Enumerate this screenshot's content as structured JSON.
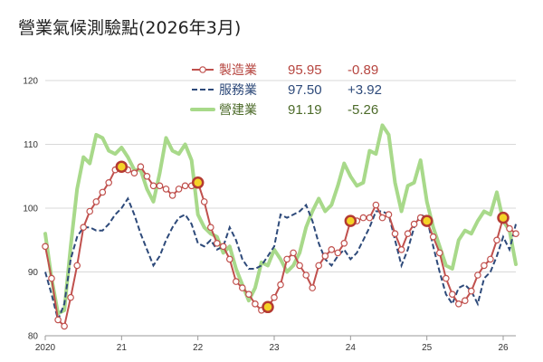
{
  "chart_data": {
    "type": "line",
    "title": "營業氣候測驗點(2026年3月)",
    "ylim": [
      80,
      120
    ],
    "yticks": [
      80,
      90,
      100,
      110,
      120
    ],
    "xlim": [
      2020.0,
      2026.166
    ],
    "xticks": [
      {
        "value": 2020,
        "label": "2020"
      },
      {
        "value": 2021,
        "label": "21"
      },
      {
        "value": 2022,
        "label": "22"
      },
      {
        "value": 2023,
        "label": "23"
      },
      {
        "value": 2024,
        "label": "24"
      },
      {
        "value": 2025,
        "label": "25"
      },
      {
        "value": 2026,
        "label": "26"
      }
    ],
    "grid": "horizontal",
    "legend_position": "top-center",
    "series": [
      {
        "name": "營建業",
        "color": "#a8d98a",
        "style": "thick",
        "latest": "91.19",
        "change": "-5.26",
        "points": [
          [
            2020.0,
            96.0
          ],
          [
            2020.083,
            89.0
          ],
          [
            2020.167,
            83.5
          ],
          [
            2020.25,
            84.0
          ],
          [
            2020.333,
            94.0
          ],
          [
            2020.417,
            103.0
          ],
          [
            2020.5,
            108.0
          ],
          [
            2020.583,
            107.0
          ],
          [
            2020.667,
            111.5
          ],
          [
            2020.75,
            111.0
          ],
          [
            2020.833,
            109.0
          ],
          [
            2020.917,
            108.5
          ],
          [
            2021.0,
            109.5
          ],
          [
            2021.083,
            108.0
          ],
          [
            2021.167,
            106.0
          ],
          [
            2021.25,
            106.0
          ],
          [
            2021.333,
            103.0
          ],
          [
            2021.417,
            101.0
          ],
          [
            2021.5,
            105.5
          ],
          [
            2021.583,
            111.0
          ],
          [
            2021.667,
            109.0
          ],
          [
            2021.75,
            108.5
          ],
          [
            2021.833,
            110.0
          ],
          [
            2021.917,
            107.5
          ],
          [
            2022.0,
            99.0
          ],
          [
            2022.083,
            97.0
          ],
          [
            2022.167,
            96.0
          ],
          [
            2022.25,
            95.5
          ],
          [
            2022.333,
            93.0
          ],
          [
            2022.417,
            94.0
          ],
          [
            2022.5,
            90.5
          ],
          [
            2022.583,
            88.0
          ],
          [
            2022.667,
            85.5
          ],
          [
            2022.75,
            87.5
          ],
          [
            2022.833,
            91.5
          ],
          [
            2022.917,
            91.0
          ],
          [
            2023.0,
            93.5
          ],
          [
            2023.083,
            92.0
          ],
          [
            2023.167,
            90.0
          ],
          [
            2023.25,
            91.0
          ],
          [
            2023.333,
            93.0
          ],
          [
            2023.417,
            97.0
          ],
          [
            2023.5,
            99.5
          ],
          [
            2023.583,
            101.5
          ],
          [
            2023.667,
            99.5
          ],
          [
            2023.75,
            100.5
          ],
          [
            2023.833,
            103.5
          ],
          [
            2023.917,
            107.0
          ],
          [
            2024.0,
            105.0
          ],
          [
            2024.083,
            103.5
          ],
          [
            2024.167,
            104.0
          ],
          [
            2024.25,
            109.0
          ],
          [
            2024.333,
            108.5
          ],
          [
            2024.417,
            113.0
          ],
          [
            2024.5,
            111.5
          ],
          [
            2024.583,
            104.0
          ],
          [
            2024.667,
            99.5
          ],
          [
            2024.75,
            103.5
          ],
          [
            2024.833,
            104.0
          ],
          [
            2024.917,
            107.5
          ],
          [
            2025.0,
            101.0
          ],
          [
            2025.083,
            97.0
          ],
          [
            2025.167,
            94.0
          ],
          [
            2025.25,
            91.0
          ],
          [
            2025.333,
            90.5
          ],
          [
            2025.417,
            95.0
          ],
          [
            2025.5,
            96.5
          ],
          [
            2025.583,
            96.0
          ],
          [
            2025.667,
            98.0
          ],
          [
            2025.75,
            99.5
          ],
          [
            2025.833,
            99.0
          ],
          [
            2025.917,
            102.5
          ],
          [
            2026.0,
            98.0
          ],
          [
            2026.083,
            96.5
          ],
          [
            2026.166,
            91.2
          ]
        ]
      },
      {
        "name": "服務業",
        "color": "#2e4a7a",
        "style": "dashed",
        "latest": "97.50",
        "change": "+3.92",
        "points": [
          [
            2020.0,
            90.0
          ],
          [
            2020.083,
            86.5
          ],
          [
            2020.167,
            82.5
          ],
          [
            2020.25,
            85.0
          ],
          [
            2020.333,
            92.0
          ],
          [
            2020.417,
            95.5
          ],
          [
            2020.5,
            97.0
          ],
          [
            2020.583,
            97.0
          ],
          [
            2020.667,
            96.5
          ],
          [
            2020.75,
            96.5
          ],
          [
            2020.833,
            97.5
          ],
          [
            2020.917,
            99.0
          ],
          [
            2021.0,
            100.0
          ],
          [
            2021.083,
            101.5
          ],
          [
            2021.167,
            99.0
          ],
          [
            2021.25,
            96.0
          ],
          [
            2021.333,
            93.5
          ],
          [
            2021.417,
            91.0
          ],
          [
            2021.5,
            92.5
          ],
          [
            2021.583,
            95.0
          ],
          [
            2021.667,
            97.0
          ],
          [
            2021.75,
            98.5
          ],
          [
            2021.833,
            99.0
          ],
          [
            2021.917,
            97.5
          ],
          [
            2022.0,
            94.5
          ],
          [
            2022.083,
            94.0
          ],
          [
            2022.167,
            95.0
          ],
          [
            2022.25,
            93.5
          ],
          [
            2022.333,
            94.0
          ],
          [
            2022.417,
            97.0
          ],
          [
            2022.5,
            95.0
          ],
          [
            2022.583,
            92.0
          ],
          [
            2022.667,
            90.5
          ],
          [
            2022.75,
            90.5
          ],
          [
            2022.833,
            91.0
          ],
          [
            2022.917,
            92.5
          ],
          [
            2023.0,
            94.0
          ],
          [
            2023.083,
            99.0
          ],
          [
            2023.167,
            98.5
          ],
          [
            2023.25,
            99.0
          ],
          [
            2023.333,
            99.5
          ],
          [
            2023.417,
            100.5
          ],
          [
            2023.5,
            98.0
          ],
          [
            2023.583,
            94.5
          ],
          [
            2023.667,
            92.0
          ],
          [
            2023.75,
            91.0
          ],
          [
            2023.833,
            92.5
          ],
          [
            2023.917,
            93.5
          ],
          [
            2024.0,
            92.0
          ],
          [
            2024.083,
            93.0
          ],
          [
            2024.167,
            95.0
          ],
          [
            2024.25,
            97.0
          ],
          [
            2024.333,
            99.5
          ],
          [
            2024.417,
            99.5
          ],
          [
            2024.5,
            99.0
          ],
          [
            2024.583,
            95.0
          ],
          [
            2024.667,
            91.0
          ],
          [
            2024.75,
            93.5
          ],
          [
            2024.833,
            97.0
          ],
          [
            2024.917,
            99.0
          ],
          [
            2025.0,
            98.5
          ],
          [
            2025.083,
            94.0
          ],
          [
            2025.167,
            90.0
          ],
          [
            2025.25,
            86.5
          ],
          [
            2025.333,
            85.0
          ],
          [
            2025.417,
            87.5
          ],
          [
            2025.5,
            88.0
          ],
          [
            2025.583,
            87.0
          ],
          [
            2025.667,
            85.0
          ],
          [
            2025.75,
            89.0
          ],
          [
            2025.833,
            90.0
          ],
          [
            2025.917,
            92.5
          ],
          [
            2026.0,
            95.5
          ],
          [
            2026.083,
            93.5
          ],
          [
            2026.166,
            97.5
          ]
        ]
      },
      {
        "name": "製造業",
        "color": "#c0504d",
        "style": "markers",
        "latest": "95.95",
        "change": "-0.89",
        "points": [
          [
            2020.0,
            94.0
          ],
          [
            2020.083,
            89.0
          ],
          [
            2020.167,
            82.5
          ],
          [
            2020.25,
            81.5
          ],
          [
            2020.333,
            86.0
          ],
          [
            2020.417,
            91.0
          ],
          [
            2020.5,
            97.0
          ],
          [
            2020.583,
            99.5
          ],
          [
            2020.667,
            101.0
          ],
          [
            2020.75,
            102.5
          ],
          [
            2020.833,
            104.0
          ],
          [
            2020.917,
            106.0
          ],
          [
            2021.0,
            106.5
          ],
          [
            2021.083,
            106.0
          ],
          [
            2021.167,
            105.5
          ],
          [
            2021.25,
            106.5
          ],
          [
            2021.333,
            105.0
          ],
          [
            2021.417,
            103.5
          ],
          [
            2021.5,
            103.5
          ],
          [
            2021.583,
            103.0
          ],
          [
            2021.667,
            102.0
          ],
          [
            2021.75,
            103.0
          ],
          [
            2021.833,
            103.5
          ],
          [
            2021.917,
            103.5
          ],
          [
            2022.0,
            104.0
          ],
          [
            2022.083,
            101.0
          ],
          [
            2022.167,
            97.0
          ],
          [
            2022.25,
            94.5
          ],
          [
            2022.333,
            94.0
          ],
          [
            2022.417,
            92.0
          ],
          [
            2022.5,
            88.5
          ],
          [
            2022.583,
            87.5
          ],
          [
            2022.667,
            86.5
          ],
          [
            2022.75,
            85.0
          ],
          [
            2022.833,
            84.0
          ],
          [
            2022.917,
            84.5
          ],
          [
            2023.0,
            86.0
          ],
          [
            2023.083,
            88.0
          ],
          [
            2023.167,
            92.0
          ],
          [
            2023.25,
            93.0
          ],
          [
            2023.333,
            91.0
          ],
          [
            2023.417,
            89.5
          ],
          [
            2023.5,
            87.5
          ],
          [
            2023.583,
            91.0
          ],
          [
            2023.667,
            92.5
          ],
          [
            2023.75,
            93.5
          ],
          [
            2023.833,
            93.0
          ],
          [
            2023.917,
            94.5
          ],
          [
            2024.0,
            98.0
          ],
          [
            2024.083,
            98.0
          ],
          [
            2024.167,
            98.5
          ],
          [
            2024.25,
            98.5
          ],
          [
            2024.333,
            100.5
          ],
          [
            2024.417,
            98.5
          ],
          [
            2024.5,
            99.0
          ],
          [
            2024.583,
            96.0
          ],
          [
            2024.667,
            93.5
          ],
          [
            2024.75,
            96.0
          ],
          [
            2024.833,
            97.5
          ],
          [
            2024.917,
            98.5
          ],
          [
            2025.0,
            98.0
          ],
          [
            2025.083,
            95.5
          ],
          [
            2025.167,
            93.0
          ],
          [
            2025.25,
            89.0
          ],
          [
            2025.333,
            86.5
          ],
          [
            2025.417,
            85.0
          ],
          [
            2025.5,
            85.5
          ],
          [
            2025.583,
            87.0
          ],
          [
            2025.667,
            89.5
          ],
          [
            2025.75,
            91.0
          ],
          [
            2025.833,
            92.0
          ],
          [
            2025.917,
            95.0
          ],
          [
            2026.0,
            98.5
          ],
          [
            2026.083,
            96.8
          ],
          [
            2026.166,
            96.0
          ]
        ],
        "highlight_x": [
          2021.0,
          2022.0,
          2022.917,
          2024.0,
          2025.0,
          2026.0
        ]
      }
    ]
  }
}
